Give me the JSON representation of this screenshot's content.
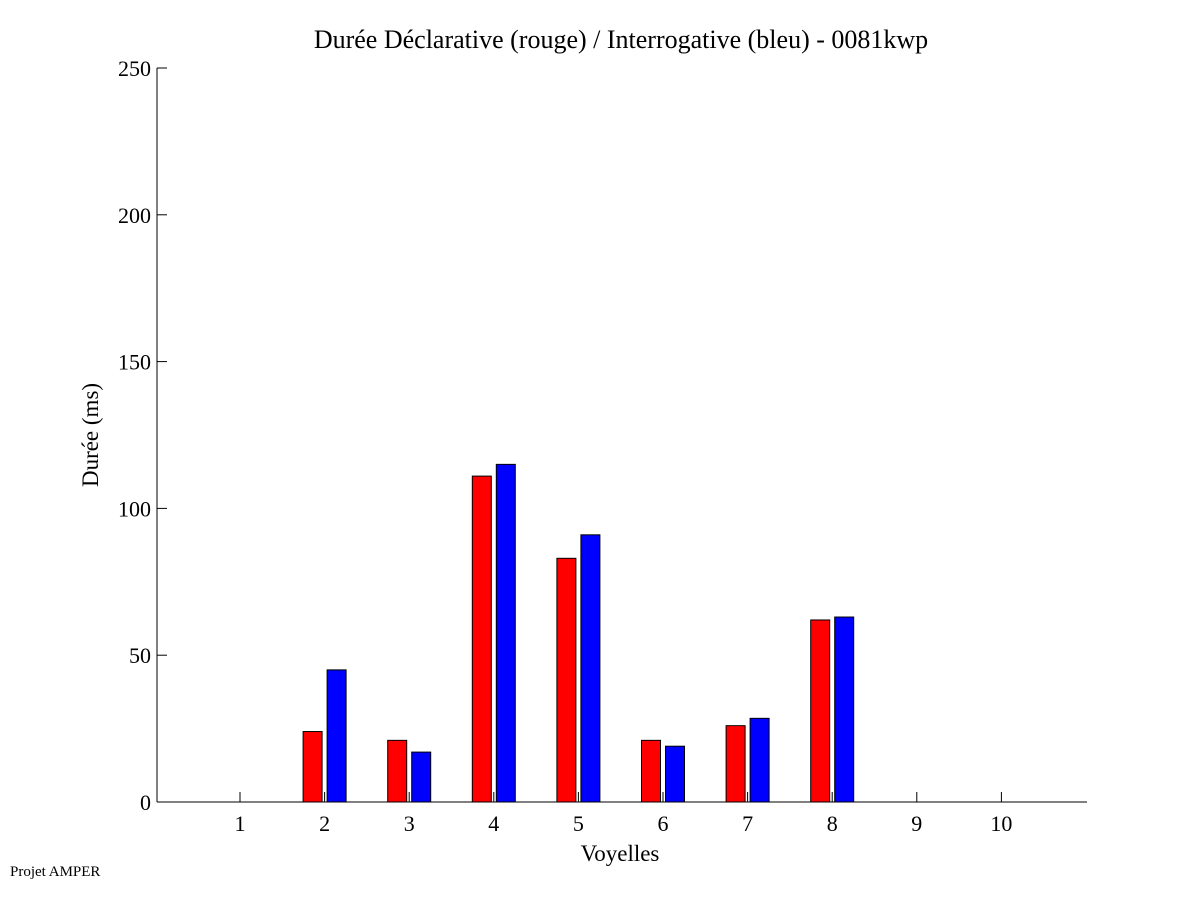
{
  "footer": {
    "label": "Projet AMPER"
  },
  "chart_data": {
    "type": "bar",
    "title": "Durée Déclarative (rouge) / Interrogative (bleu) - 0081kwp",
    "xlabel": "Voyelles",
    "ylabel": "Durée (ms)",
    "categories": [
      "1",
      "2",
      "3",
      "4",
      "5",
      "6",
      "7",
      "8",
      "9",
      "10"
    ],
    "ylim": [
      0,
      250
    ],
    "yticks": [
      0,
      50,
      100,
      150,
      200,
      250
    ],
    "grid": false,
    "series": [
      {
        "color": "#ff0000",
        "values": [
          null,
          24,
          21,
          111,
          83,
          21,
          26,
          62,
          null,
          null
        ]
      },
      {
        "color": "#0000ff",
        "values": [
          null,
          45,
          17,
          115,
          91,
          19,
          28.5,
          63,
          null,
          null
        ]
      }
    ]
  }
}
